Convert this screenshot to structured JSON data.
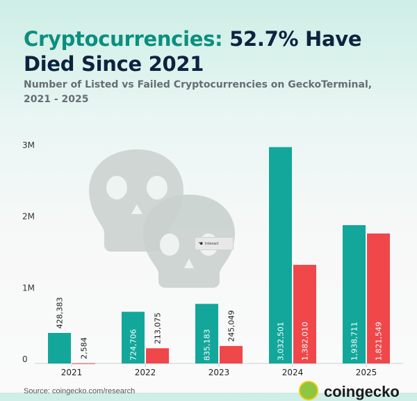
{
  "header": {
    "title_accent": "Cryptocurrencies:",
    "title_rest": " 52.7% Have Died Since 2021",
    "subtitle": "Number of Listed vs Failed Cryptocurrencies on GeckoTerminal, 2021 - 2025"
  },
  "interact": {
    "label": "Interact",
    "icon": "hand-pointer-icon"
  },
  "footer": {
    "source_text": "Source: coingecko.com/research",
    "brand": "coingecko"
  },
  "colors": {
    "listed": "#12a79a",
    "failed": "#ef474a",
    "skull": "#c5ccc9"
  },
  "chart_data": {
    "type": "bar",
    "categories": [
      "2021",
      "2022",
      "2023",
      "2024",
      "2025"
    ],
    "series": [
      {
        "values": [
          428383,
          724706,
          835183,
          3032501,
          1938711
        ],
        "labels": [
          "428,383",
          "724,706",
          "835,183",
          "3,032,501",
          "1,938,711"
        ]
      },
      {
        "values": [
          2584,
          213075,
          245049,
          1382010,
          1821549
        ],
        "labels": [
          "2,584",
          "213,075",
          "245,049",
          "1,382,010",
          "1,821,549"
        ]
      }
    ],
    "yticks": [
      {
        "value": 0,
        "label": "0"
      },
      {
        "value": 1000000,
        "label": "1M"
      },
      {
        "value": 2000000,
        "label": "2M"
      },
      {
        "value": 3000000,
        "label": "3M"
      }
    ],
    "ylim": [
      0,
      3000000
    ],
    "grid": false,
    "legend": "none"
  }
}
